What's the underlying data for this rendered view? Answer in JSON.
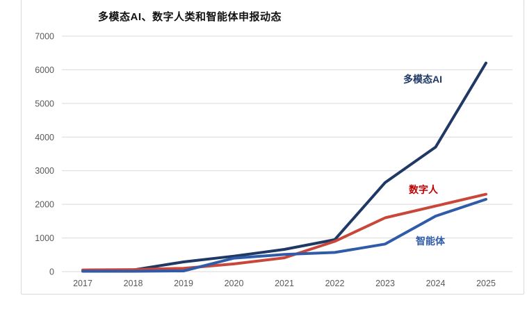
{
  "card": {
    "background": "#ffffff",
    "border_color": "#d9d9d9"
  },
  "chart_data": {
    "type": "line",
    "title": "多模态AI、数字人类和智能体申报动态",
    "categories": [
      "2017",
      "2018",
      "2019",
      "2020",
      "2021",
      "2022",
      "2023",
      "2024",
      "2025"
    ],
    "series": [
      {
        "name": "多模态AI",
        "color": "#1F3864",
        "label_color": "#1F3864",
        "values": [
          30,
          50,
          290,
          460,
          660,
          950,
          2650,
          3700,
          6200
        ]
      },
      {
        "name": "数字人",
        "color": "#C8473A",
        "label_color": "#C00000",
        "values": [
          50,
          60,
          100,
          230,
          410,
          900,
          1600,
          1950,
          2300
        ]
      },
      {
        "name": "智能体",
        "color": "#2F5BA8",
        "label_color": "#2F5BA8",
        "values": [
          10,
          10,
          20,
          400,
          510,
          570,
          820,
          1650,
          2150
        ]
      }
    ],
    "xlabel": "",
    "ylabel": "",
    "ylim": [
      0,
      7000
    ],
    "yticks": [
      0,
      1000,
      2000,
      3000,
      4000,
      5000,
      6000,
      7000
    ],
    "grid": true,
    "grid_color": "#D9D9D9",
    "axis_label_color": "#595959",
    "legend_position": "inline-labels"
  }
}
